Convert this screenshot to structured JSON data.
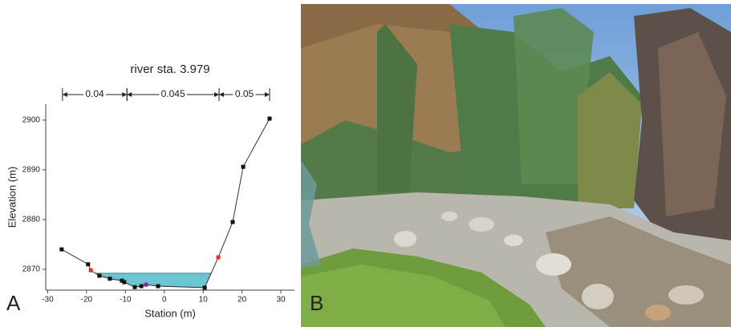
{
  "chart_data": {
    "type": "line",
    "title": "river sta. 3.979",
    "panel_labels": [
      "A",
      "B"
    ],
    "x_label": "Station (m)",
    "y_label": "Elevation (m)",
    "xlim": [
      -30.5,
      33.5
    ],
    "ylim": [
      2865.8,
      2903.2
    ],
    "xticks": [
      -30,
      -20,
      -10,
      0,
      10,
      20,
      30
    ],
    "yticks": [
      2870,
      2880,
      2890,
      2900
    ],
    "x": [
      -26.4,
      -19.6,
      -18.9,
      -16.7,
      -14.0,
      -10.9,
      -10.3,
      -7.6,
      -5.9,
      -4.7,
      -1.6,
      10.4,
      13.9,
      17.6,
      20.3,
      27.1
    ],
    "series": [
      {
        "color": "#333333",
        "values": [
          2874.0,
          2871.0,
          2869.8,
          2868.7,
          2868.1,
          2867.7,
          2867.4,
          2866.4,
          2866.6,
          2866.9,
          2866.6,
          2866.3,
          2872.4,
          2879.5,
          2890.6,
          2900.3
        ],
        "marker_colors": [
          "#111111",
          "#111111",
          "#e0302a",
          "#111111",
          "#111111",
          "#111111",
          "#111111",
          "#111111",
          "#111111",
          "#8a2aa0",
          "#111111",
          "#111111",
          "#e0302a",
          "#111111",
          "#111111",
          "#111111"
        ]
      }
    ],
    "water_surface": 2869.2,
    "water_color": "#6cc6d2",
    "manning_n": [
      {
        "value": 0.04,
        "start": -26.2,
        "end": -9.6
      },
      {
        "value": 0.045,
        "start": -9.6,
        "end": 14.1
      },
      {
        "value": 0.05,
        "start": 14.1,
        "end": 27.1
      }
    ]
  }
}
